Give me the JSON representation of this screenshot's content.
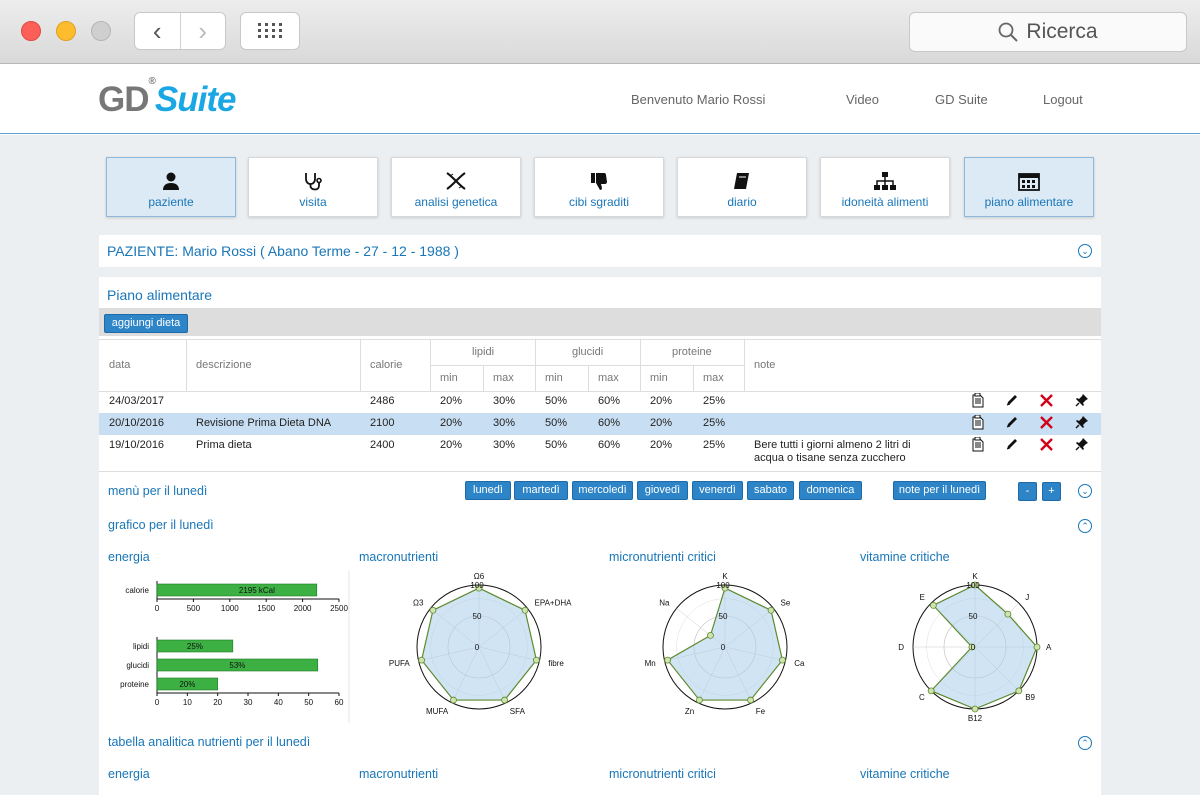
{
  "browser": {
    "search_placeholder": "Ricerca",
    "back_icon": "chevron-left-icon",
    "forward_icon": "chevron-right-icon"
  },
  "header": {
    "logo_gd": "GD",
    "logo_suite": "Suite",
    "welcome": "Benvenuto Mario Rossi",
    "links": [
      "Video",
      "GD Suite",
      "Logout"
    ]
  },
  "nav": {
    "tiles": [
      {
        "label": "paziente",
        "icon": "user-icon"
      },
      {
        "label": "visita",
        "icon": "stethoscope-icon"
      },
      {
        "label": "analisi genetica",
        "icon": "dna-icon"
      },
      {
        "label": "cibi sgraditi",
        "icon": "thumbs-down-icon"
      },
      {
        "label": "diario",
        "icon": "book-icon"
      },
      {
        "label": "idoneità alimenti",
        "icon": "sitemap-icon"
      },
      {
        "label": "piano alimentare",
        "icon": "calendar-icon"
      }
    ]
  },
  "patient": {
    "title": "PAZIENTE: Mario Rossi ( Abano Terme - 27 - 12 - 1988 )"
  },
  "plan": {
    "title": "Piano alimentare",
    "add_button": "aggiungi dieta",
    "headers": {
      "data": "data",
      "descrizione": "descrizione",
      "calorie": "calorie",
      "lipidi": "lipidi",
      "glucidi": "glucidi",
      "proteine": "proteine",
      "note": "note",
      "min": "min",
      "max": "max"
    },
    "rows": [
      {
        "data": "24/03/2017",
        "descrizione": "",
        "calorie": "2486",
        "lip_min": "20%",
        "lip_max": "30%",
        "glu_min": "50%",
        "glu_max": "60%",
        "pro_min": "20%",
        "pro_max": "25%",
        "note1": "",
        "note2": ""
      },
      {
        "data": "20/10/2016",
        "descrizione": "Revisione Prima Dieta DNA",
        "calorie": "2100",
        "lip_min": "20%",
        "lip_max": "30%",
        "glu_min": "50%",
        "glu_max": "60%",
        "pro_min": "20%",
        "pro_max": "25%",
        "note1": "",
        "note2": ""
      },
      {
        "data": "19/10/2016",
        "descrizione": "Prima dieta",
        "calorie": "2400",
        "lip_min": "20%",
        "lip_max": "30%",
        "glu_min": "50%",
        "glu_max": "60%",
        "pro_min": "20%",
        "pro_max": "25%",
        "note1": "Bere tutti i giorni almeno 2 litri di",
        "note2": "acqua o tisane senza zucchero"
      }
    ]
  },
  "menu": {
    "title": "menù per il lunedì",
    "days": [
      "lunedì",
      "martedì",
      "mercoledì",
      "giovedì",
      "venerdì",
      "sabato",
      "domenica"
    ],
    "note_button": "note per il lunedì",
    "minus": "-",
    "plus": "+"
  },
  "graph": {
    "title": "grafico per il lunedì",
    "col_titles": [
      "energia",
      "macronutrienti",
      "micronutrienti critici",
      "vitamine critiche"
    ]
  },
  "table_section": {
    "title": "tabella analitica nutrienti per il lunedì",
    "col_titles": [
      "energia",
      "macronutrienti",
      "micronutrienti critici",
      "vitamine critiche"
    ]
  },
  "colors": {
    "accent": "#1976b8",
    "button": "#2d84c6",
    "bar": "#3cb043",
    "radar_line": "#5d8a2e",
    "selected_row": "#c8def2"
  },
  "chart_data": [
    {
      "type": "bar",
      "orientation": "horizontal",
      "categories": [
        "calorie"
      ],
      "values": [
        2195
      ],
      "labels": [
        "2195 kCal"
      ],
      "xlim": [
        0,
        2500
      ],
      "xticks": [
        0,
        500,
        1000,
        1500,
        2000,
        2500
      ]
    },
    {
      "type": "bar",
      "orientation": "horizontal",
      "categories": [
        "lipidi",
        "glucidi",
        "proteine"
      ],
      "values": [
        25,
        53,
        20
      ],
      "labels": [
        "25%",
        "53%",
        "20%"
      ],
      "xlim": [
        0,
        60
      ],
      "xticks": [
        0,
        10,
        20,
        30,
        40,
        50,
        60
      ]
    },
    {
      "type": "radar",
      "axes": [
        "Ω6",
        "EPA+DHA",
        "fibre",
        "SFA",
        "MUFA",
        "PUFA",
        "Ω3"
      ],
      "values": [
        95,
        95,
        95,
        95,
        95,
        95,
        95
      ],
      "rticks": [
        0,
        50,
        100
      ]
    },
    {
      "type": "radar",
      "axes": [
        "K",
        "Se",
        "Ca",
        "Fe",
        "Zn",
        "Mn",
        "Na"
      ],
      "values": [
        95,
        95,
        95,
        95,
        95,
        95,
        30
      ],
      "rticks": [
        0,
        50,
        100
      ]
    },
    {
      "type": "radar",
      "axes": [
        "K",
        "J",
        "A",
        "B9",
        "B12",
        "C",
        "D",
        "E"
      ],
      "values": [
        100,
        75,
        100,
        100,
        100,
        100,
        5,
        95
      ],
      "rticks": [
        0,
        50,
        100
      ]
    }
  ]
}
